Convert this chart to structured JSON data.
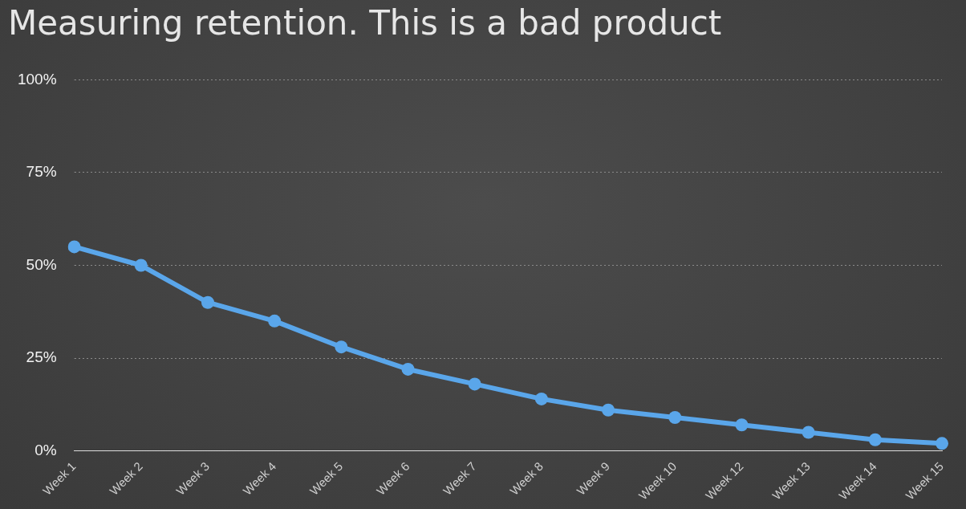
{
  "chart_data": {
    "type": "line",
    "title": "Measuring retention. This is a bad product",
    "categories": [
      "Week 1",
      "Week 2",
      "Week 3",
      "Week 4",
      "Week 5",
      "Week 6",
      "Week 7",
      "Week 8",
      "Week 9",
      "Week 10",
      "Week 12",
      "Week 13",
      "Week 14",
      "Week 15"
    ],
    "series": [
      {
        "color": "#5aa6ea",
        "values": [
          55,
          50,
          40,
          35,
          28,
          22,
          18,
          14,
          11,
          9,
          7,
          5,
          3,
          2
        ]
      }
    ],
    "ylim": [
      0,
      100
    ],
    "yticks": [
      {
        "value": 0,
        "label": "0%"
      },
      {
        "value": 25,
        "label": "25%"
      },
      {
        "value": 50,
        "label": "50%"
      },
      {
        "value": 75,
        "label": "75%"
      },
      {
        "value": 100,
        "label": "100%"
      }
    ],
    "grid": "y",
    "legend": false,
    "marker": "circle",
    "line_style": "solid"
  }
}
